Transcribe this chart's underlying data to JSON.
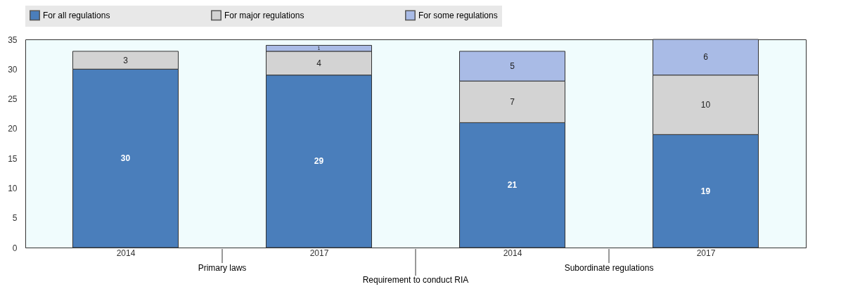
{
  "chart_data": {
    "type": "bar",
    "stacked": true,
    "categories": [
      "2014",
      "2017",
      "2014",
      "2017"
    ],
    "series": [
      {
        "name": "For all regulations",
        "color": "#4a7ebb",
        "values": [
          30,
          29,
          21,
          19
        ]
      },
      {
        "name": "For major regulations",
        "color": "#d3d3d3",
        "values": [
          3,
          4,
          7,
          10
        ]
      },
      {
        "name": "For some regulations",
        "color": "#a9bbe6",
        "values": [
          null,
          1,
          5,
          6
        ]
      }
    ],
    "ylim": [
      0,
      35
    ],
    "yticks": [
      0,
      5,
      10,
      15,
      20,
      25,
      30,
      35
    ],
    "annotations": [
      "Primary laws",
      "Subordinate regulations",
      "Requirement to conduct RIA"
    ],
    "data_labels": true,
    "grid": false,
    "legend": "top"
  }
}
